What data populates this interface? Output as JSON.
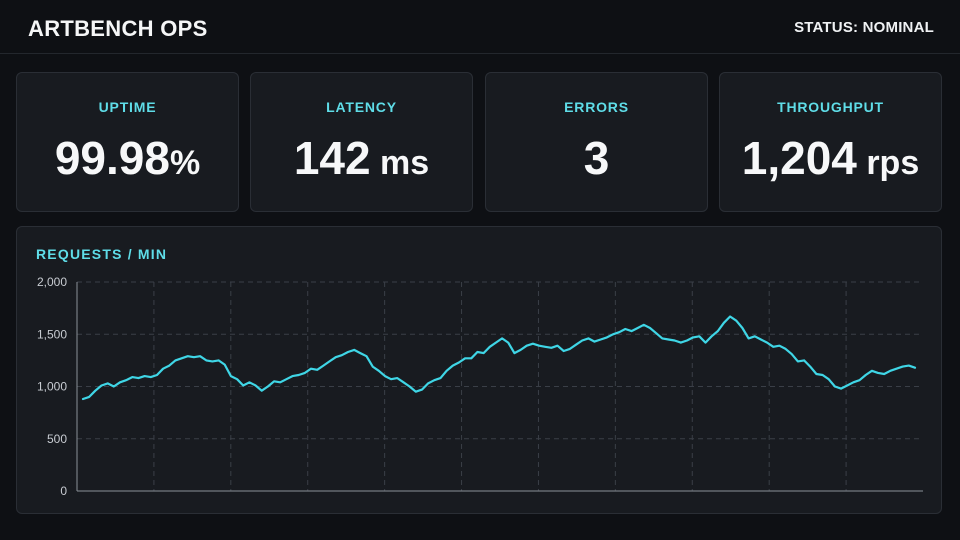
{
  "header": {
    "title": "ARTBENCH OPS",
    "status": "STATUS: NOMINAL"
  },
  "cards": [
    {
      "label": "UPTIME",
      "value": "99.98",
      "unit": "%"
    },
    {
      "label": "LATENCY",
      "value": "142",
      "unit": " ms"
    },
    {
      "label": "ERRORS",
      "value": "3",
      "unit": ""
    },
    {
      "label": "THROUGHPUT",
      "value": "1,204",
      "unit": " rps"
    }
  ],
  "colors": {
    "accent": "#5fdde8",
    "line": "#3fd6e6",
    "background": "#0e1014",
    "card": "#181b20"
  },
  "chart_data": {
    "type": "line",
    "title": "REQUESTS / MIN",
    "ylim": [
      0,
      2000
    ],
    "yticks": [
      0,
      500,
      1000,
      1500,
      2000
    ],
    "ytick_labels": [
      "0",
      "500",
      "1,000",
      "1,500",
      "2,000"
    ],
    "grid": true,
    "series": [
      {
        "values": [
          880,
          900,
          960,
          1010,
          1030,
          1000,
          1040,
          1060,
          1090,
          1080,
          1100,
          1090,
          1110,
          1170,
          1200,
          1250,
          1270,
          1290,
          1280,
          1290,
          1250,
          1240,
          1250,
          1210,
          1100,
          1070,
          1010,
          1040,
          1010,
          960,
          1000,
          1050,
          1040,
          1070,
          1100,
          1110,
          1130,
          1170,
          1160,
          1200,
          1240,
          1280,
          1300,
          1330,
          1350,
          1320,
          1290,
          1190,
          1150,
          1100,
          1070,
          1080,
          1040,
          1000,
          950,
          970,
          1030,
          1060,
          1080,
          1150,
          1200,
          1230,
          1270,
          1270,
          1330,
          1320,
          1380,
          1420,
          1460,
          1420,
          1320,
          1350,
          1390,
          1410,
          1390,
          1380,
          1370,
          1390,
          1340,
          1360,
          1400,
          1440,
          1460,
          1430,
          1450,
          1470,
          1500,
          1520,
          1550,
          1530,
          1560,
          1590,
          1560,
          1510,
          1460,
          1450,
          1440,
          1420,
          1440,
          1470,
          1480,
          1420,
          1480,
          1530,
          1610,
          1670,
          1630,
          1560,
          1460,
          1480,
          1450,
          1420,
          1380,
          1390,
          1360,
          1310,
          1240,
          1250,
          1190,
          1120,
          1110,
          1070,
          1000,
          980,
          1010,
          1040,
          1060,
          1110,
          1150,
          1130,
          1120,
          1150,
          1170,
          1190,
          1200,
          1180
        ]
      }
    ]
  }
}
